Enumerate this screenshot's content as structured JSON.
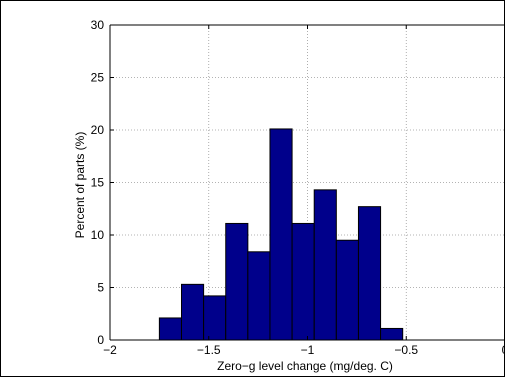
{
  "chart_data": {
    "type": "bar",
    "title": "",
    "xlabel": "Zero−g level change (mg/deg. C)",
    "ylabel": "Percent of parts (%)",
    "xlim": [
      -2,
      0
    ],
    "ylim": [
      0,
      30
    ],
    "grid": true,
    "x_ticks": [
      -2,
      -1.5,
      -1,
      -0.5,
      0
    ],
    "x_tick_labels": [
      "−2",
      "−1.5",
      "−1",
      "−0.5",
      "0"
    ],
    "y_ticks": [
      0,
      5,
      10,
      15,
      20,
      25,
      30
    ],
    "y_tick_labels": [
      "0",
      "5",
      "10",
      "15",
      "20",
      "25",
      "30"
    ],
    "bar_color": "#00008b",
    "bins": [
      {
        "x0": -1.75,
        "x1": -1.638,
        "value": 2.1
      },
      {
        "x0": -1.638,
        "x1": -1.526,
        "value": 5.3
      },
      {
        "x0": -1.526,
        "x1": -1.414,
        "value": 4.2
      },
      {
        "x0": -1.414,
        "x1": -1.302,
        "value": 11.1
      },
      {
        "x0": -1.302,
        "x1": -1.19,
        "value": 8.4
      },
      {
        "x0": -1.19,
        "x1": -1.078,
        "value": 20.1
      },
      {
        "x0": -1.078,
        "x1": -0.966,
        "value": 11.1
      },
      {
        "x0": -0.966,
        "x1": -0.854,
        "value": 14.3
      },
      {
        "x0": -0.854,
        "x1": -0.742,
        "value": 9.5
      },
      {
        "x0": -0.742,
        "x1": -0.63,
        "value": 12.7
      },
      {
        "x0": -0.63,
        "x1": -0.518,
        "value": 1.1
      }
    ]
  }
}
